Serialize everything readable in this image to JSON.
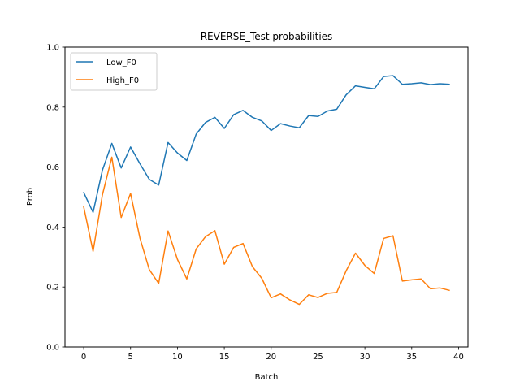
{
  "chart_data": {
    "type": "line",
    "title": "REVERSE_Test probabilities",
    "xlabel": "Batch",
    "ylabel": "Prob",
    "xlim": [
      -2,
      41
    ],
    "ylim": [
      0.0,
      1.0
    ],
    "xticks": [
      0,
      5,
      10,
      15,
      20,
      25,
      30,
      35,
      40
    ],
    "yticks": [
      0.0,
      0.2,
      0.4,
      0.6,
      0.8,
      1.0
    ],
    "xtick_labels": [
      "0",
      "5",
      "10",
      "15",
      "20",
      "25",
      "30",
      "35",
      "40"
    ],
    "ytick_labels": [
      "0.0",
      "0.2",
      "0.4",
      "0.6",
      "0.8",
      "1.0"
    ],
    "grid": false,
    "legend_position": "top-left",
    "x": [
      0,
      1,
      2,
      3,
      4,
      5,
      6,
      7,
      8,
      9,
      10,
      11,
      12,
      13,
      14,
      15,
      16,
      17,
      18,
      19,
      20,
      21,
      22,
      23,
      24,
      25,
      26,
      27,
      28,
      29,
      30,
      31,
      32,
      33,
      34,
      35,
      36,
      37,
      38,
      39
    ],
    "series": [
      {
        "name": "Low_F0",
        "color": "#1f77b4",
        "values": [
          0.515,
          0.449,
          0.59,
          0.679,
          0.597,
          0.667,
          0.611,
          0.559,
          0.54,
          0.682,
          0.647,
          0.622,
          0.71,
          0.749,
          0.766,
          0.729,
          0.775,
          0.789,
          0.766,
          0.754,
          0.722,
          0.745,
          0.737,
          0.731,
          0.772,
          0.769,
          0.787,
          0.793,
          0.841,
          0.871,
          0.866,
          0.861,
          0.902,
          0.905,
          0.876,
          0.878,
          0.881,
          0.875,
          0.878,
          0.876
        ]
      },
      {
        "name": "High_F0",
        "color": "#ff7f0e",
        "values": [
          0.467,
          0.319,
          0.508,
          0.633,
          0.432,
          0.512,
          0.363,
          0.258,
          0.212,
          0.387,
          0.292,
          0.227,
          0.327,
          0.368,
          0.388,
          0.276,
          0.332,
          0.345,
          0.268,
          0.229,
          0.164,
          0.177,
          0.157,
          0.142,
          0.174,
          0.165,
          0.179,
          0.182,
          0.254,
          0.313,
          0.272,
          0.245,
          0.362,
          0.371,
          0.22,
          0.224,
          0.227,
          0.194,
          0.197,
          0.189
        ]
      }
    ]
  }
}
